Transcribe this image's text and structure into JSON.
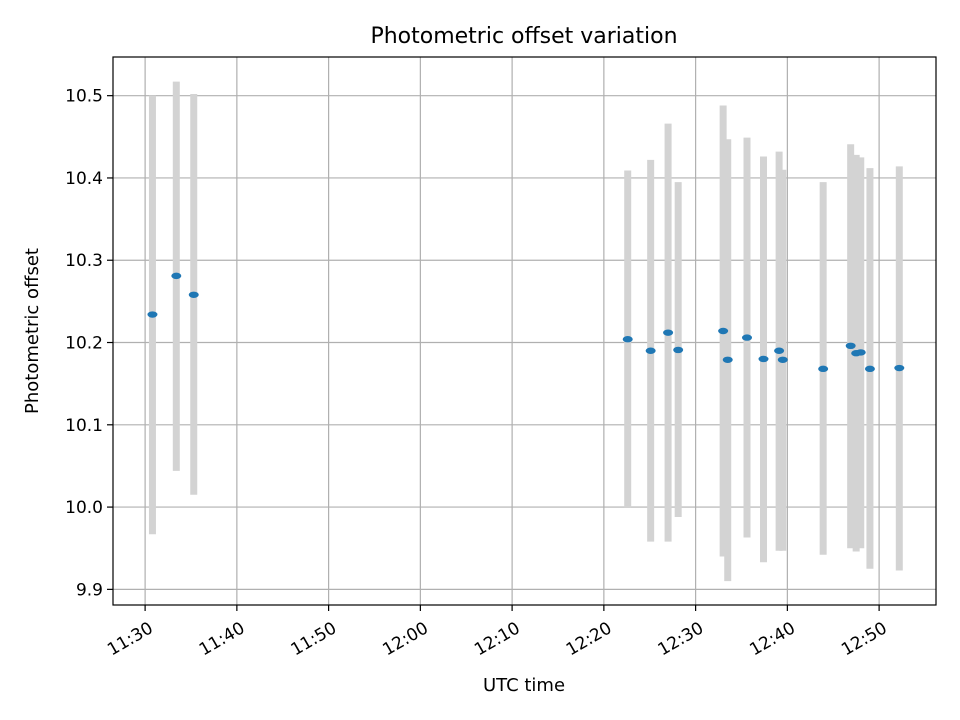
{
  "chart_data": {
    "type": "scatter",
    "title": "Photometric offset variation",
    "xlabel": "UTC time",
    "ylabel": "Photometric offset",
    "x_ticks": [
      "11:30",
      "11:40",
      "11:50",
      "12:00",
      "12:10",
      "12:20",
      "12:30",
      "12:40",
      "12:50"
    ],
    "y_ticks": [
      "9.9",
      "10.0",
      "10.1",
      "10.2",
      "10.3",
      "10.4",
      "10.5"
    ],
    "xlim": [
      "11:26.5",
      "12:56.2"
    ],
    "ylim": [
      9.881,
      10.547
    ],
    "grid": true,
    "marker_color": "#1f77b4",
    "errorbar_color": "#d3d3d3",
    "points": [
      {
        "t": "11:30.8",
        "y": 10.234,
        "lo": 9.967,
        "hi": 10.5
      },
      {
        "t": "11:33.4",
        "y": 10.281,
        "lo": 10.044,
        "hi": 10.517
      },
      {
        "t": "11:35.3",
        "y": 10.258,
        "lo": 10.015,
        "hi": 10.502
      },
      {
        "t": "12:22.6",
        "y": 10.204,
        "lo": 10.0,
        "hi": 10.409
      },
      {
        "t": "12:25.1",
        "y": 10.19,
        "lo": 9.958,
        "hi": 10.422
      },
      {
        "t": "12:27.0",
        "y": 10.212,
        "lo": 9.958,
        "hi": 10.466
      },
      {
        "t": "12:28.1",
        "y": 10.191,
        "lo": 9.988,
        "hi": 10.395
      },
      {
        "t": "12:33.0",
        "y": 10.214,
        "lo": 9.94,
        "hi": 10.488
      },
      {
        "t": "12:33.5",
        "y": 10.179,
        "lo": 9.91,
        "hi": 10.447
      },
      {
        "t": "12:35.6",
        "y": 10.206,
        "lo": 9.963,
        "hi": 10.449
      },
      {
        "t": "12:37.4",
        "y": 10.18,
        "lo": 9.933,
        "hi": 10.426
      },
      {
        "t": "12:39.1",
        "y": 10.19,
        "lo": 9.947,
        "hi": 10.432
      },
      {
        "t": "12:39.5",
        "y": 10.179,
        "lo": 9.947,
        "hi": 10.41
      },
      {
        "t": "12:43.9",
        "y": 10.168,
        "lo": 9.942,
        "hi": 10.395
      },
      {
        "t": "12:46.9",
        "y": 10.196,
        "lo": 9.95,
        "hi": 10.441
      },
      {
        "t": "12:47.5",
        "y": 10.187,
        "lo": 9.946,
        "hi": 10.428
      },
      {
        "t": "12:48.0",
        "y": 10.188,
        "lo": 9.95,
        "hi": 10.425
      },
      {
        "t": "12:49.0",
        "y": 10.168,
        "lo": 9.925,
        "hi": 10.412
      },
      {
        "t": "12:52.2",
        "y": 10.169,
        "lo": 9.923,
        "hi": 10.414
      }
    ]
  }
}
